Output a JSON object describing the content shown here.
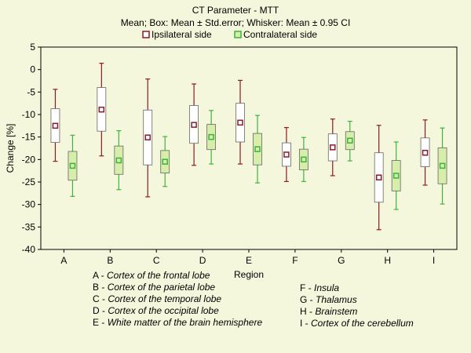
{
  "chart_data": {
    "type": "box",
    "title": "CT Parameter - MTT",
    "subtitle": "Mean; Box: Mean ± Std.error; Whisker: Mean ± 0.95 CI",
    "xlabel": "Region",
    "ylabel": "Change [%]",
    "ylim": [
      -40,
      5
    ],
    "yticks": [
      5,
      0,
      -5,
      -10,
      -15,
      -20,
      -25,
      -30,
      -35,
      -40
    ],
    "categories": [
      "A",
      "B",
      "C",
      "D",
      "E",
      "F",
      "G",
      "H",
      "I"
    ],
    "legend_position": "top-center",
    "grid": false,
    "series": [
      {
        "name": "Ipsilateral side",
        "color": "#8b1a2b",
        "mean": [
          -12.5,
          -8.9,
          -15.1,
          -12.3,
          -11.8,
          -18.9,
          -17.3,
          -24.0,
          -18.5
        ],
        "box_low": [
          -16.2,
          -13.7,
          -21.2,
          -16.4,
          -16.1,
          -21.5,
          -20.3,
          -29.5,
          -21.6
        ],
        "box_high": [
          -8.7,
          -4.0,
          -9.0,
          -8.0,
          -7.5,
          -16.3,
          -14.3,
          -18.5,
          -15.2
        ],
        "whisk_low": [
          -20.4,
          -19.2,
          -28.3,
          -21.3,
          -21.0,
          -24.9,
          -23.6,
          -35.6,
          -25.7
        ],
        "whisk_high": [
          -4.4,
          1.4,
          -2.1,
          -3.2,
          -2.4,
          -12.9,
          -11.0,
          -12.4,
          -11.2
        ]
      },
      {
        "name": "Contralateral side",
        "color": "#3cb43c",
        "mean": [
          -21.4,
          -20.2,
          -20.5,
          -15.0,
          -17.7,
          -20.0,
          -15.8,
          -23.6,
          -21.4
        ],
        "box_low": [
          -24.6,
          -23.3,
          -23.0,
          -17.8,
          -21.2,
          -22.3,
          -17.8,
          -27.0,
          -25.4
        ],
        "box_high": [
          -18.2,
          -17.0,
          -18.0,
          -12.2,
          -14.2,
          -17.7,
          -13.8,
          -20.2,
          -17.4
        ],
        "whisk_low": [
          -28.2,
          -26.7,
          -26.0,
          -21.0,
          -25.2,
          -24.9,
          -20.3,
          -31.1,
          -29.9
        ],
        "whisk_high": [
          -14.6,
          -13.6,
          -14.9,
          -9.1,
          -10.2,
          -15.1,
          -11.5,
          -16.1,
          -13.0
        ]
      }
    ]
  },
  "region_key": [
    {
      "code": "A",
      "name": "Cortex of the frontal lobe"
    },
    {
      "code": "B",
      "name": "Cortex of the parietal lobe"
    },
    {
      "code": "C",
      "name": "Cortex of the temporal lobe"
    },
    {
      "code": "D",
      "name": "Cortex of the occipital lobe"
    },
    {
      "code": "E",
      "name": "White matter of the brain hemisphere"
    },
    {
      "code": "F",
      "name": "Insula"
    },
    {
      "code": "G",
      "name": "Thalamus"
    },
    {
      "code": "H",
      "name": "Brainstem"
    },
    {
      "code": "I",
      "name": "Cortex of the cerebellum"
    }
  ],
  "colors": {
    "background": "#f5f7dc",
    "box_fill_ipsi": "#ffffff",
    "box_fill_contra": "#d6eeaa"
  }
}
